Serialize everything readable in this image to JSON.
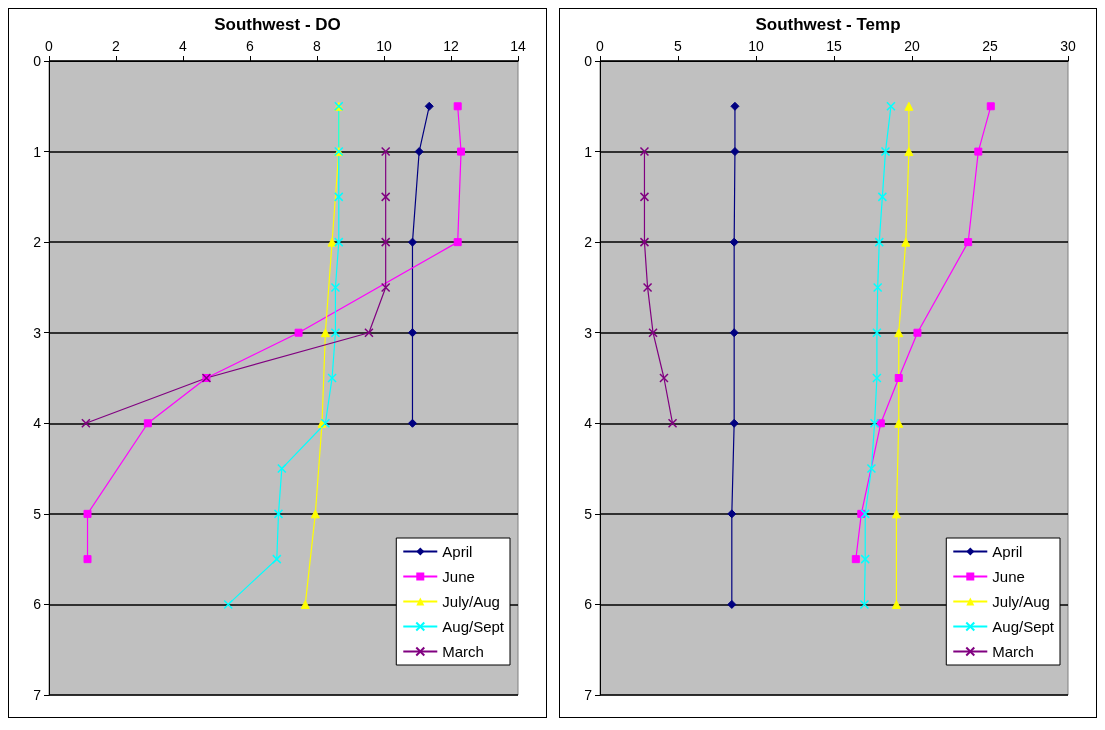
{
  "chart_data": [
    {
      "type": "line",
      "title": "Southwest - DO",
      "xlim": [
        0,
        14
      ],
      "xticks": [
        0,
        2,
        4,
        6,
        8,
        10,
        12,
        14
      ],
      "ylim": [
        7,
        0
      ],
      "yticks": [
        0,
        1,
        2,
        3,
        4,
        5,
        6,
        7
      ],
      "grid": "y",
      "legend": "bottom right",
      "series": [
        {
          "name": "April",
          "color": "#000080",
          "marker": "diamond",
          "x": [
            11.35,
            11.05,
            10.85,
            10.85,
            10.85
          ],
          "values": [
            0.5,
            1,
            2,
            3,
            4
          ]
        },
        {
          "name": "June",
          "color": "#ff00ff",
          "marker": "square",
          "x": [
            12.2,
            12.3,
            12.2,
            7.45,
            4.7,
            2.95,
            1.15,
            1.15
          ],
          "values": [
            0.5,
            1,
            2,
            3,
            3.5,
            4,
            5,
            5.5
          ]
        },
        {
          "name": "July/Aug",
          "color": "#ffff00",
          "marker": "triangle",
          "x": [
            8.65,
            8.65,
            8.45,
            8.25,
            8.15,
            7.95,
            7.65
          ],
          "values": [
            0.5,
            1,
            2,
            3,
            4,
            5,
            6
          ]
        },
        {
          "name": "Aug/Sept",
          "color": "#00ffff",
          "marker": "cross",
          "x": [
            8.65,
            8.65,
            8.65,
            8.65,
            8.55,
            8.55,
            8.45,
            8.25,
            6.95,
            6.85,
            6.8,
            5.35
          ],
          "values": [
            0.5,
            1,
            1.5,
            2,
            2.5,
            3,
            3.5,
            4,
            4.5,
            5,
            5.5,
            6
          ]
        },
        {
          "name": "March",
          "color": "#800080",
          "marker": "cross",
          "x": [
            10.05,
            10.05,
            10.05,
            10.05,
            9.55,
            4.7,
            1.1
          ],
          "values": [
            1,
            1.5,
            2,
            2.5,
            3,
            3.5,
            4
          ]
        }
      ]
    },
    {
      "type": "line",
      "title": "Southwest - Temp",
      "xlim": [
        0,
        30
      ],
      "xticks": [
        0,
        5,
        10,
        15,
        20,
        25,
        30
      ],
      "ylim": [
        7,
        0
      ],
      "yticks": [
        0,
        1,
        2,
        3,
        4,
        5,
        6,
        7
      ],
      "grid": "y",
      "legend": "bottom right",
      "series": [
        {
          "name": "April",
          "color": "#000080",
          "marker": "diamond",
          "x": [
            8.65,
            8.65,
            8.6,
            8.6,
            8.6,
            8.45,
            8.45
          ],
          "values": [
            0.5,
            1,
            2,
            3,
            4,
            5,
            6
          ]
        },
        {
          "name": "June",
          "color": "#ff00ff",
          "marker": "square",
          "x": [
            25.05,
            24.25,
            23.6,
            20.35,
            19.15,
            18.0,
            16.75,
            16.4
          ],
          "values": [
            0.5,
            1,
            2,
            3,
            3.5,
            4,
            5,
            5.5
          ]
        },
        {
          "name": "July/Aug",
          "color": "#ffff00",
          "marker": "triangle",
          "x": [
            19.8,
            19.8,
            19.6,
            19.15,
            19.15,
            19.0,
            19.0
          ],
          "values": [
            0.5,
            1,
            2,
            3,
            4,
            5,
            6
          ]
        },
        {
          "name": "Aug/Sept",
          "color": "#00ffff",
          "marker": "cross",
          "x": [
            18.65,
            18.3,
            18.1,
            17.9,
            17.8,
            17.75,
            17.75,
            17.6,
            17.4,
            17.0,
            17.0,
            16.95
          ],
          "values": [
            0.5,
            1,
            1.5,
            2,
            2.5,
            3,
            3.5,
            4,
            4.5,
            5,
            5.5,
            6
          ]
        },
        {
          "name": "March",
          "color": "#800080",
          "marker": "cross",
          "x": [
            2.85,
            2.85,
            2.85,
            3.05,
            3.4,
            4.1,
            4.65
          ],
          "values": [
            1,
            1.5,
            2,
            2.5,
            3,
            3.5,
            4
          ]
        }
      ]
    }
  ]
}
